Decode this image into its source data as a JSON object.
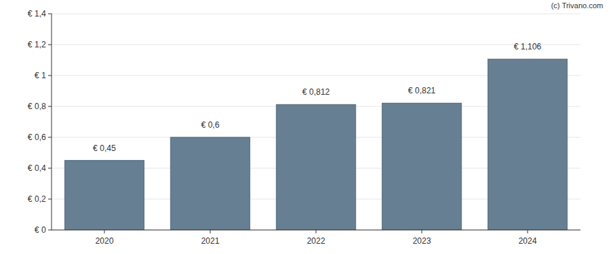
{
  "chart_data": {
    "type": "bar",
    "annotations": [
      "(c) Trivano.com"
    ],
    "categories": [
      "2020",
      "2021",
      "2022",
      "2023",
      "2024"
    ],
    "values": [
      0.45,
      0.6,
      0.812,
      0.821,
      1.106
    ],
    "value_labels": [
      "€ 0,45",
      "€ 0,6",
      "€ 0,812",
      "€ 0,821",
      "€ 1,106"
    ],
    "data_labels": true,
    "color": "#677f92",
    "ylim": [
      0,
      1.4
    ],
    "yticks": [
      {
        "value": 0,
        "label": "€ 0"
      },
      {
        "value": 0.2,
        "label": "€ 0,2"
      },
      {
        "value": 0.4,
        "label": "€ 0,4"
      },
      {
        "value": 0.6,
        "label": "€ 0,6"
      },
      {
        "value": 0.8,
        "label": "€ 0,8"
      },
      {
        "value": 1,
        "label": "€ 1"
      },
      {
        "value": 1.2,
        "label": "€ 1,2"
      },
      {
        "value": 1.4,
        "label": "€ 1,4"
      }
    ],
    "grid": true
  }
}
